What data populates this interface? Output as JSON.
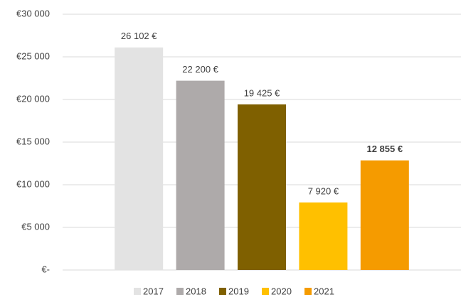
{
  "chart_data": {
    "type": "bar",
    "series": [
      {
        "name": "2017",
        "color": "#e3e3e3",
        "values": [
          26102
        ],
        "value_labels": [
          "26 102 €"
        ]
      },
      {
        "name": "2018",
        "color": "#aeaaaa",
        "values": [
          22200
        ],
        "value_labels": [
          "22 200 €"
        ]
      },
      {
        "name": "2019",
        "color": "#7f6000",
        "values": [
          19425
        ],
        "value_labels": [
          "19 425 €"
        ]
      },
      {
        "name": "2020",
        "color": "#ffc000",
        "values": [
          7920
        ],
        "value_labels": [
          "7 920 €"
        ]
      },
      {
        "name": "2021",
        "color": "#f59b00",
        "values": [
          12855
        ],
        "value_labels": [
          "12 855 €"
        ],
        "label_bold": true
      }
    ],
    "ylim": [
      0,
      30000
    ],
    "yticks": [
      {
        "value": 0,
        "label": "€-"
      },
      {
        "value": 5000,
        "label": "€5 000"
      },
      {
        "value": 10000,
        "label": "€10 000"
      },
      {
        "value": 15000,
        "label": "€15 000"
      },
      {
        "value": 20000,
        "label": "€20 000"
      },
      {
        "value": 25000,
        "label": "€25 000"
      },
      {
        "value": 30000,
        "label": "€30 000"
      }
    ],
    "grid": true
  }
}
